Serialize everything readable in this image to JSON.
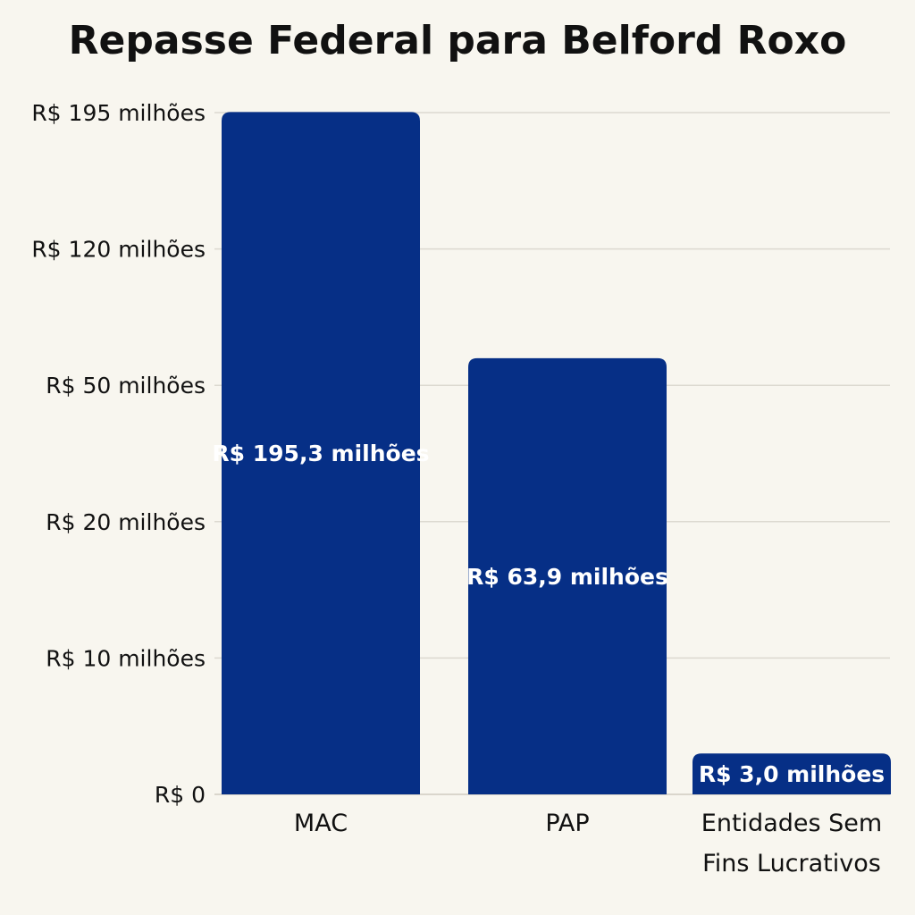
{
  "chart_data": {
    "type": "bar",
    "title": "Repasse Federal para Belford Roxo",
    "xlabel": "",
    "ylabel": "",
    "categories": [
      "MAC",
      "PAP",
      "Entidades Sem Fins Lucrativos"
    ],
    "category_label_lines": [
      [
        "MAC"
      ],
      [
        "PAP"
      ],
      [
        "Entidades Sem",
        "Fins Lucrativos"
      ]
    ],
    "values": [
      195.3,
      63.9,
      3.0
    ],
    "data_labels": [
      "R$ 195,3 milhões",
      "R$ 63,9 milhões",
      "R$ 3,0 milhões"
    ],
    "y_ticks": [
      0,
      10,
      20,
      50,
      120,
      195
    ],
    "y_tick_labels": [
      "R$ 0",
      "R$ 10 milhões",
      "R$ 20 milhões",
      "R$ 50 milhões",
      "R$ 120 milhões",
      "R$ 195 milhões"
    ],
    "y_scale": "nonlinear (evenly spaced ticks)",
    "grid": true,
    "bar_color": "#062f86",
    "legend": "none"
  }
}
